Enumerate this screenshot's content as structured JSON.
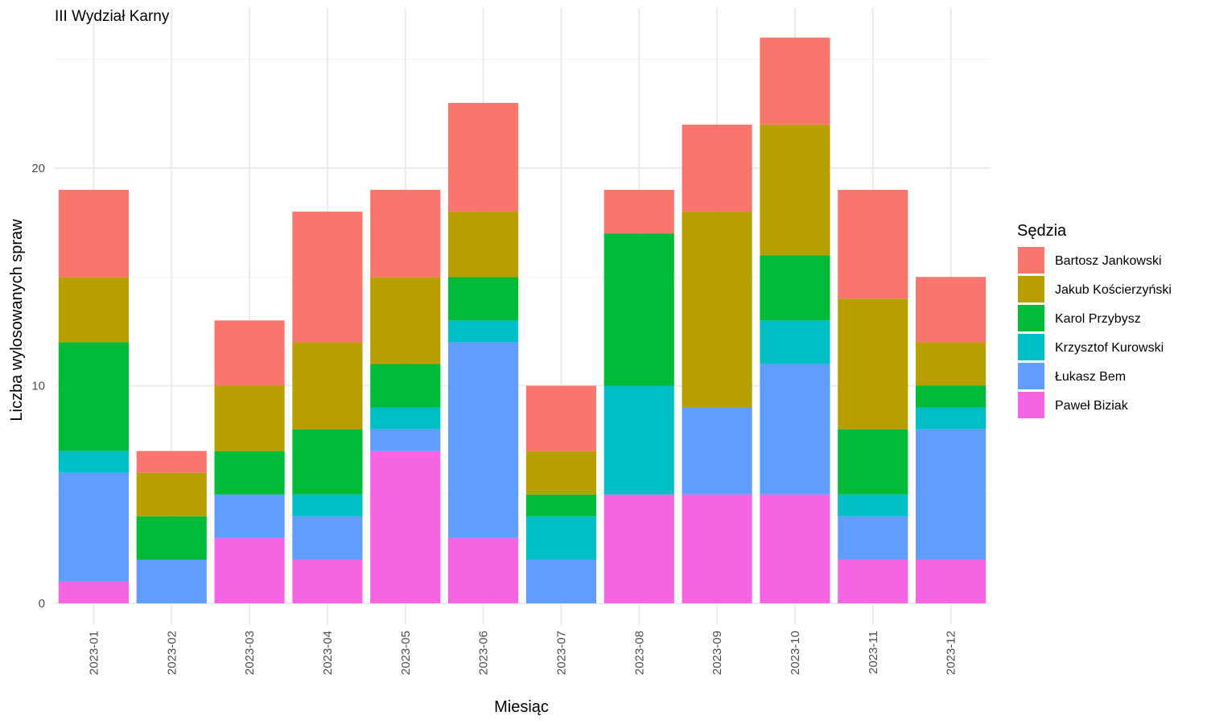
{
  "chart_data": {
    "type": "bar",
    "stacked": true,
    "title": "III Wydział Karny",
    "xlabel": "Miesiąc",
    "ylabel": "Liczba wylosowanych spraw",
    "ylim": [
      -1,
      27
    ],
    "yticks": [
      0,
      10,
      20
    ],
    "grid": true,
    "legend_title": "Sędzia",
    "legend_position": "right",
    "categories": [
      "2023-01",
      "2023-02",
      "2023-03",
      "2023-04",
      "2023-05",
      "2023-06",
      "2023-07",
      "2023-08",
      "2023-09",
      "2023-10",
      "2023-11",
      "2023-12"
    ],
    "series": [
      {
        "name": "Paweł Biziak",
        "color": "#F564E3",
        "values": [
          1,
          0,
          3,
          2,
          7,
          3,
          0,
          5,
          5,
          5,
          2,
          2
        ]
      },
      {
        "name": "Łukasz Bem",
        "color": "#619CFF",
        "values": [
          5,
          2,
          2,
          2,
          1,
          9,
          2,
          0,
          4,
          6,
          2,
          6
        ]
      },
      {
        "name": "Krzysztof Kurowski",
        "color": "#00BFC4",
        "values": [
          1,
          0,
          0,
          1,
          1,
          1,
          2,
          5,
          0,
          2,
          1,
          1
        ]
      },
      {
        "name": "Karol Przybysz",
        "color": "#00BA38",
        "values": [
          5,
          2,
          2,
          3,
          2,
          2,
          1,
          7,
          0,
          3,
          3,
          1
        ]
      },
      {
        "name": "Jakub Kościerzyński",
        "color": "#B79F00",
        "values": [
          3,
          2,
          3,
          4,
          4,
          3,
          2,
          0,
          9,
          6,
          6,
          2
        ]
      },
      {
        "name": "Bartosz Jankowski",
        "color": "#F8766D",
        "values": [
          4,
          1,
          3,
          6,
          4,
          5,
          3,
          2,
          4,
          4,
          5,
          3
        ]
      }
    ],
    "legend_order": [
      "Bartosz Jankowski",
      "Jakub Kościerzyński",
      "Karol Przybysz",
      "Krzysztof Kurowski",
      "Łukasz Bem",
      "Paweł Biziak"
    ]
  }
}
